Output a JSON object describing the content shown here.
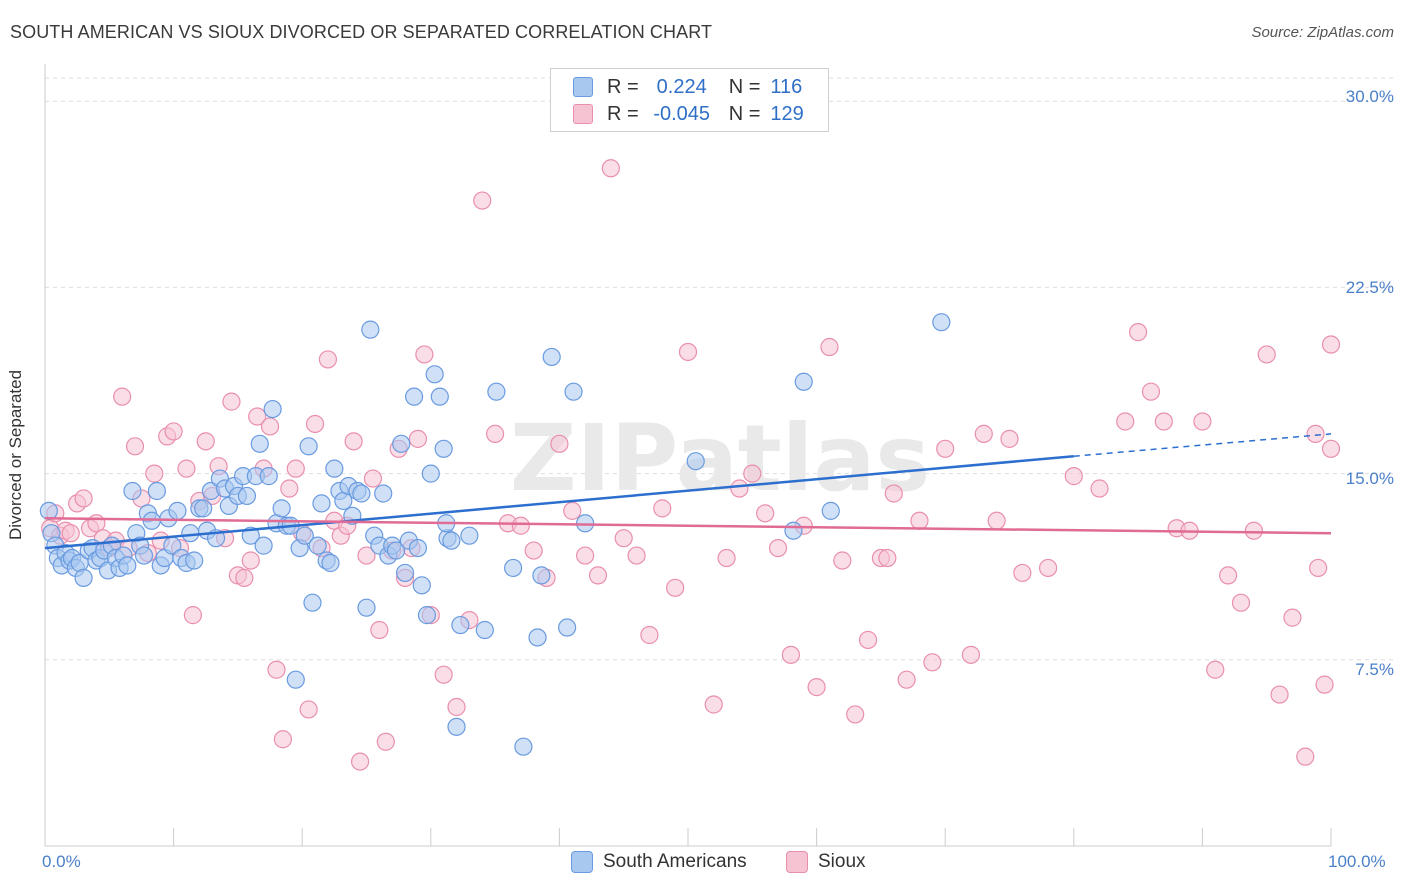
{
  "header": {
    "title": "SOUTH AMERICAN VS SIOUX DIVORCED OR SEPARATED CORRELATION CHART",
    "source": "Source: ZipAtlas.com"
  },
  "watermark": "ZIPatlas",
  "legend": {
    "rows": [
      {
        "r_label": "R =",
        "r_value": "0.224",
        "n_label": "N =",
        "n_value": "116"
      },
      {
        "r_label": "R =",
        "r_value": "-0.045",
        "n_label": "N =",
        "n_value": "129"
      }
    ]
  },
  "bottom_legend": {
    "items": [
      {
        "label": "South Americans"
      },
      {
        "label": "Sioux"
      }
    ]
  },
  "colors": {
    "blue_fill": "#a9c8f0",
    "blue_stroke": "#6a9be0",
    "blue_line": "#2d6fcf",
    "pink_fill": "#f6c3d3",
    "pink_stroke": "#e98fae",
    "pink_line": "#e06b95",
    "tick_text": "#4a7fc9",
    "grid": "#dddddd"
  },
  "chart_data": {
    "type": "scatter",
    "title": "SOUTH AMERICAN VS SIOUX DIVORCED OR SEPARATED CORRELATION CHART",
    "xlabel": "",
    "ylabel": "Divorced or Separated",
    "xlim": [
      0,
      100
    ],
    "ylim": [
      0,
      31.5
    ],
    "x_tick_labels": [
      "0.0%",
      "100.0%"
    ],
    "y_ticks": [
      7.5,
      15.0,
      22.5,
      30.0
    ],
    "y_tick_labels": [
      "7.5%",
      "15.0%",
      "22.5%",
      "30.0%"
    ],
    "grid": true,
    "legend_position": "top-center",
    "series": [
      {
        "name": "South Americans",
        "color": "#a9c8f0",
        "trend": {
          "x": [
            0,
            80
          ],
          "y": [
            12.0,
            15.7
          ],
          "dashed_to": [
            100,
            16.6
          ]
        },
        "points": [
          [
            0.3,
            13.5
          ],
          [
            0.5,
            12.6
          ],
          [
            0.8,
            12.1
          ],
          [
            1.0,
            11.6
          ],
          [
            1.3,
            11.3
          ],
          [
            1.6,
            11.8
          ],
          [
            1.9,
            11.5
          ],
          [
            2.1,
            11.6
          ],
          [
            2.4,
            11.2
          ],
          [
            2.7,
            11.4
          ],
          [
            3.0,
            10.8
          ],
          [
            3.4,
            11.9
          ],
          [
            3.7,
            12.0
          ],
          [
            4.0,
            11.5
          ],
          [
            4.3,
            11.6
          ],
          [
            4.6,
            11.9
          ],
          [
            4.9,
            11.1
          ],
          [
            5.2,
            12.1
          ],
          [
            5.5,
            11.6
          ],
          [
            5.8,
            11.2
          ],
          [
            6.1,
            11.7
          ],
          [
            6.4,
            11.3
          ],
          [
            6.8,
            14.3
          ],
          [
            7.1,
            12.6
          ],
          [
            7.4,
            12.1
          ],
          [
            7.7,
            11.7
          ],
          [
            8.0,
            13.4
          ],
          [
            8.3,
            13.1
          ],
          [
            8.7,
            14.3
          ],
          [
            9.0,
            11.3
          ],
          [
            9.3,
            11.6
          ],
          [
            9.6,
            13.2
          ],
          [
            9.9,
            12.1
          ],
          [
            10.3,
            13.5
          ],
          [
            10.6,
            11.6
          ],
          [
            11.0,
            11.4
          ],
          [
            11.3,
            12.6
          ],
          [
            11.6,
            11.5
          ],
          [
            12.0,
            13.6
          ],
          [
            12.3,
            13.6
          ],
          [
            12.6,
            12.7
          ],
          [
            12.9,
            14.3
          ],
          [
            13.3,
            12.4
          ],
          [
            13.6,
            14.8
          ],
          [
            14.0,
            14.4
          ],
          [
            14.3,
            13.7
          ],
          [
            14.7,
            14.5
          ],
          [
            15.0,
            14.1
          ],
          [
            15.4,
            14.9
          ],
          [
            15.7,
            14.1
          ],
          [
            16.0,
            12.5
          ],
          [
            16.4,
            14.9
          ],
          [
            16.7,
            16.2
          ],
          [
            17.0,
            12.1
          ],
          [
            17.4,
            14.9
          ],
          [
            17.7,
            17.6
          ],
          [
            18.0,
            13.0
          ],
          [
            18.4,
            13.6
          ],
          [
            18.8,
            12.9
          ],
          [
            19.1,
            12.9
          ],
          [
            19.5,
            6.7
          ],
          [
            19.8,
            12.0
          ],
          [
            20.2,
            12.5
          ],
          [
            20.5,
            16.1
          ],
          [
            20.8,
            9.8
          ],
          [
            21.2,
            12.1
          ],
          [
            21.5,
            13.8
          ],
          [
            21.9,
            11.5
          ],
          [
            22.2,
            11.4
          ],
          [
            22.5,
            15.2
          ],
          [
            22.9,
            14.3
          ],
          [
            23.2,
            13.9
          ],
          [
            23.6,
            14.5
          ],
          [
            23.9,
            13.3
          ],
          [
            24.3,
            14.3
          ],
          [
            24.6,
            14.2
          ],
          [
            25.0,
            9.6
          ],
          [
            25.3,
            20.8
          ],
          [
            25.6,
            12.5
          ],
          [
            26.0,
            12.1
          ],
          [
            26.3,
            14.2
          ],
          [
            26.7,
            11.7
          ],
          [
            27.0,
            12.1
          ],
          [
            27.3,
            11.9
          ],
          [
            27.7,
            16.2
          ],
          [
            28.0,
            11.0
          ],
          [
            28.3,
            12.3
          ],
          [
            28.7,
            18.1
          ],
          [
            29.0,
            12.0
          ],
          [
            29.3,
            10.5
          ],
          [
            29.7,
            9.3
          ],
          [
            30.0,
            15.0
          ],
          [
            30.3,
            19.0
          ],
          [
            30.7,
            18.1
          ],
          [
            31.0,
            16.0
          ],
          [
            31.3,
            12.4
          ],
          [
            31.6,
            12.3
          ],
          [
            32.0,
            4.8
          ],
          [
            32.3,
            8.9
          ],
          [
            33.0,
            12.5
          ],
          [
            34.2,
            8.7
          ],
          [
            35.1,
            18.3
          ],
          [
            36.4,
            11.2
          ],
          [
            37.2,
            4.0
          ],
          [
            38.3,
            8.4
          ],
          [
            38.6,
            10.9
          ],
          [
            39.4,
            19.7
          ],
          [
            40.6,
            8.8
          ],
          [
            41.1,
            18.3
          ],
          [
            42.0,
            13.0
          ],
          [
            50.6,
            15.5
          ],
          [
            58.2,
            12.7
          ],
          [
            59.0,
            18.7
          ],
          [
            61.1,
            13.5
          ],
          [
            69.7,
            21.1
          ],
          [
            31.2,
            13.0
          ]
        ]
      },
      {
        "name": "Sioux",
        "color": "#f6c3d3",
        "trend": {
          "x": [
            0,
            100
          ],
          "y": [
            13.2,
            12.6
          ]
        },
        "points": [
          [
            0.4,
            12.8
          ],
          [
            0.8,
            13.4
          ],
          [
            1.2,
            12.5
          ],
          [
            1.6,
            12.7
          ],
          [
            2.0,
            12.6
          ],
          [
            2.5,
            13.8
          ],
          [
            3.0,
            14.0
          ],
          [
            3.5,
            12.8
          ],
          [
            4.0,
            13.0
          ],
          [
            4.5,
            12.4
          ],
          [
            5.0,
            12.0
          ],
          [
            5.5,
            12.3
          ],
          [
            6.0,
            18.1
          ],
          [
            6.5,
            12.0
          ],
          [
            7.0,
            16.1
          ],
          [
            7.5,
            14.0
          ],
          [
            8.0,
            11.8
          ],
          [
            8.5,
            15.0
          ],
          [
            9.0,
            12.3
          ],
          [
            9.5,
            16.5
          ],
          [
            10.0,
            16.7
          ],
          [
            10.5,
            12.0
          ],
          [
            11.0,
            15.2
          ],
          [
            11.5,
            9.3
          ],
          [
            12.0,
            13.9
          ],
          [
            12.5,
            16.3
          ],
          [
            13.0,
            14.1
          ],
          [
            13.5,
            15.3
          ],
          [
            14.0,
            12.4
          ],
          [
            14.5,
            17.9
          ],
          [
            15.0,
            10.9
          ],
          [
            15.5,
            10.8
          ],
          [
            16.0,
            11.5
          ],
          [
            16.5,
            17.3
          ],
          [
            17.0,
            15.2
          ],
          [
            17.5,
            16.9
          ],
          [
            18.0,
            7.1
          ],
          [
            18.5,
            4.3
          ],
          [
            19.0,
            14.4
          ],
          [
            19.5,
            15.2
          ],
          [
            20.0,
            12.6
          ],
          [
            20.5,
            5.5
          ],
          [
            21.0,
            17.0
          ],
          [
            21.5,
            12.0
          ],
          [
            22.0,
            19.6
          ],
          [
            22.5,
            13.1
          ],
          [
            23.0,
            12.5
          ],
          [
            23.5,
            12.9
          ],
          [
            24.0,
            16.3
          ],
          [
            24.5,
            3.4
          ],
          [
            25.0,
            11.7
          ],
          [
            25.5,
            14.8
          ],
          [
            26.0,
            8.7
          ],
          [
            26.5,
            4.2
          ],
          [
            27.0,
            11.9
          ],
          [
            27.5,
            16.0
          ],
          [
            28.0,
            10.8
          ],
          [
            28.5,
            12.0
          ],
          [
            29.0,
            16.4
          ],
          [
            29.5,
            19.8
          ],
          [
            30.0,
            9.3
          ],
          [
            31.0,
            6.9
          ],
          [
            32.0,
            5.6
          ],
          [
            33.0,
            9.1
          ],
          [
            34.0,
            26.0
          ],
          [
            35.0,
            16.6
          ],
          [
            36.0,
            13.0
          ],
          [
            37.0,
            12.9
          ],
          [
            38.0,
            11.9
          ],
          [
            39.0,
            10.8
          ],
          [
            40.0,
            16.2
          ],
          [
            41.0,
            13.5
          ],
          [
            42.0,
            11.7
          ],
          [
            43.0,
            10.9
          ],
          [
            44.0,
            27.3
          ],
          [
            45.0,
            12.4
          ],
          [
            46.0,
            11.7
          ],
          [
            47.0,
            8.5
          ],
          [
            48.0,
            13.6
          ],
          [
            49.0,
            10.4
          ],
          [
            50.0,
            19.9
          ],
          [
            52.0,
            5.7
          ],
          [
            53.0,
            11.6
          ],
          [
            54.0,
            14.4
          ],
          [
            55.0,
            15.0
          ],
          [
            56.0,
            13.4
          ],
          [
            57.0,
            12.0
          ],
          [
            58.0,
            7.7
          ],
          [
            59.0,
            12.9
          ],
          [
            60.0,
            6.4
          ],
          [
            61.0,
            20.1
          ],
          [
            62.0,
            11.5
          ],
          [
            63.0,
            5.3
          ],
          [
            64.0,
            8.3
          ],
          [
            65.0,
            11.6
          ],
          [
            66.0,
            14.2
          ],
          [
            67.0,
            6.7
          ],
          [
            68.0,
            13.1
          ],
          [
            69.0,
            7.4
          ],
          [
            70.0,
            16.0
          ],
          [
            72.0,
            7.7
          ],
          [
            73.0,
            16.6
          ],
          [
            74.0,
            13.1
          ],
          [
            75.0,
            16.4
          ],
          [
            76.0,
            11.0
          ],
          [
            78.0,
            11.2
          ],
          [
            80.0,
            14.9
          ],
          [
            82.0,
            14.4
          ],
          [
            84.0,
            17.1
          ],
          [
            85.0,
            20.7
          ],
          [
            86.0,
            18.3
          ],
          [
            87.0,
            17.1
          ],
          [
            88.0,
            12.8
          ],
          [
            89.0,
            12.7
          ],
          [
            90.0,
            17.1
          ],
          [
            91.0,
            7.1
          ],
          [
            92.0,
            10.9
          ],
          [
            93.0,
            9.8
          ],
          [
            94.0,
            12.7
          ],
          [
            95.0,
            19.8
          ],
          [
            96.0,
            6.1
          ],
          [
            97.0,
            9.2
          ],
          [
            98.0,
            3.6
          ],
          [
            99.0,
            11.2
          ],
          [
            99.5,
            6.5
          ],
          [
            98.8,
            16.6
          ],
          [
            100.0,
            16.0
          ],
          [
            100.0,
            20.2
          ],
          [
            65.5,
            11.6
          ]
        ]
      }
    ]
  }
}
